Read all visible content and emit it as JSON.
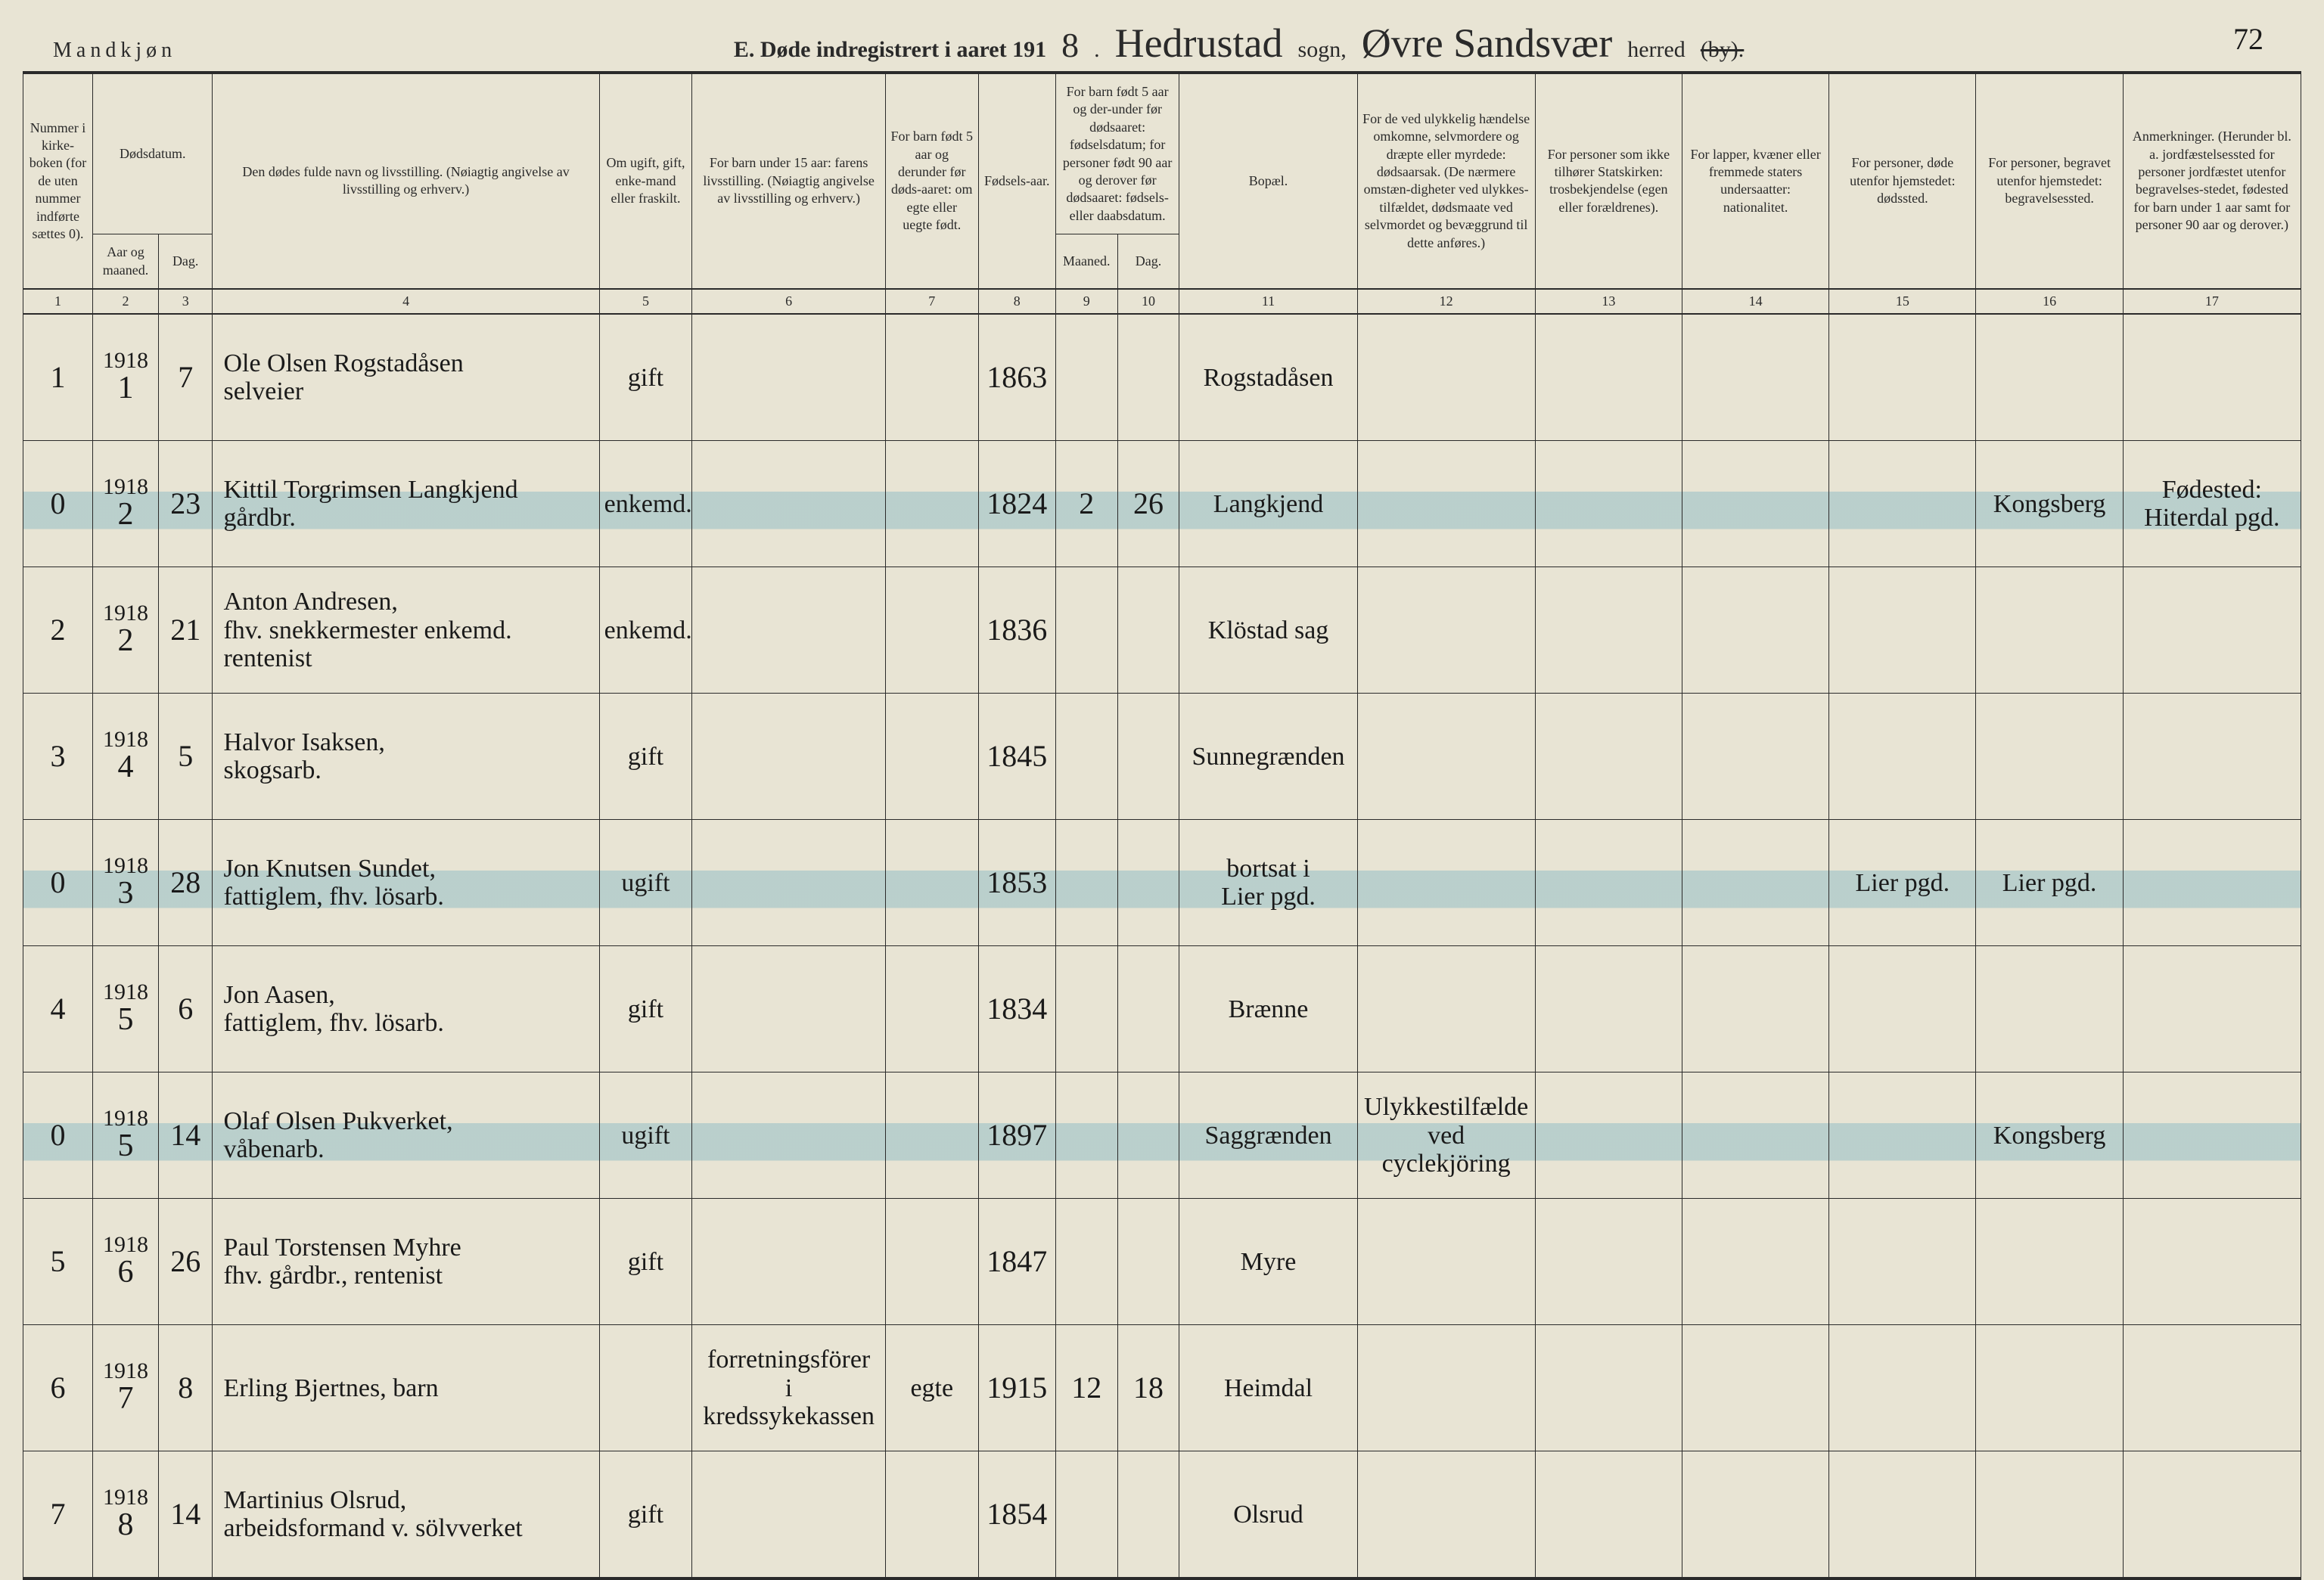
{
  "header": {
    "gender": "Mandkjøn",
    "title_prefix": "E.  Døde indregistrert i aaret 191",
    "year_suffix": "8",
    "sogn_label": "sogn,",
    "sogn_value": "Hedrustad",
    "herred_label": "herred",
    "herred_value": "Øvre Sandsvær",
    "strike_by": "(by).",
    "page_number": "72"
  },
  "columns": {
    "c1": "Nummer i kirke-boken (for de uten nummer indførte sættes 0).",
    "c2a": "Dødsdatum.",
    "c2b": "Aar og maaned.",
    "c3": "Dag.",
    "c4": "Den dødes fulde navn og livsstilling.\n(Nøiagtig angivelse av livsstilling og erhverv.)",
    "c5": "Om ugift, gift, enke-mand eller fraskilt.",
    "c6": "For barn under 15 aar:\nfarens livsstilling.\n(Nøiagtig angivelse av livsstilling og erhverv.)",
    "c7": "For barn født 5 aar og derunder før døds-aaret: om egte eller uegte født.",
    "c8": "Fødsels-aar.",
    "c9a": "For barn født 5 aar og der-under før dødsaaret: fødselsdatum; for personer født 90 aar og derover før dødsaaret: fødsels- eller daabsdatum.",
    "c9b": "Maaned.",
    "c10": "Dag.",
    "c11": "Bopæl.",
    "c12": "For de ved ulykkelig hændelse omkomne, selvmordere og dræpte eller myrdede: dødsaarsak.\n(De nærmere omstæn-digheter ved ulykkes-tilfældet, dødsmaate ved selvmordet og bevæggrund til dette anføres.)",
    "c13": "For personer som ikke tilhører Statskirken:\ntrosbekjendelse\n(egen eller forældrenes).",
    "c14": "For lapper, kvæner eller fremmede staters undersaatter:\nnationalitet.",
    "c15": "For personer, døde utenfor hjemstedet:\ndødssted.",
    "c16": "For personer, begravet utenfor hjemstedet:\nbegravelsessted.",
    "c17": "Anmerkninger.\n(Herunder bl. a. jordfæstelsessted for personer jordfæstet utenfor begravelses-stedet, fødested for barn under 1 aar samt for personer 90 aar og derover.)"
  },
  "colnums": [
    "1",
    "2",
    "3",
    "4",
    "5",
    "6",
    "7",
    "8",
    "9",
    "10",
    "11",
    "12",
    "13",
    "14",
    "15",
    "16",
    "17"
  ],
  "rows": [
    {
      "num": "1",
      "year": "1918",
      "month": "1",
      "day": "7",
      "name": "Ole Olsen Rogstadåsen\nselveier",
      "status": "gift",
      "father": "",
      "egte": "",
      "birth": "1863",
      "bm": "",
      "bd": "",
      "place": "Rogstadåsen",
      "cause": "",
      "rel": "",
      "nat": "",
      "deathplace": "",
      "burial": "",
      "notes": "",
      "hl": false
    },
    {
      "num": "0",
      "year": "1918",
      "month": "2",
      "day": "23",
      "name": "Kittil Torgrimsen Langkjend\ngårdbr.",
      "status": "enkemd.",
      "father": "",
      "egte": "",
      "birth": "1824",
      "bm": "2",
      "bd": "26",
      "place": "Langkjend",
      "cause": "",
      "rel": "",
      "nat": "",
      "deathplace": "",
      "burial": "Kongsberg",
      "notes": "Fødested:\nHiterdal pgd.",
      "hl": true
    },
    {
      "num": "2",
      "year": "1918",
      "month": "2",
      "day": "21",
      "name": "Anton Andresen,\nfhv. snekkermester enkemd.\nrentenist",
      "status": "enkemd.",
      "father": "",
      "egte": "",
      "birth": "1836",
      "bm": "",
      "bd": "",
      "place": "Klöstad sag",
      "cause": "",
      "rel": "",
      "nat": "",
      "deathplace": "",
      "burial": "",
      "notes": "",
      "hl": false
    },
    {
      "num": "3",
      "year": "1918",
      "month": "4",
      "day": "5",
      "name": "Halvor Isaksen,\nskogsarb.",
      "status": "gift",
      "father": "",
      "egte": "",
      "birth": "1845",
      "bm": "",
      "bd": "",
      "place": "Sunnegrænden",
      "cause": "",
      "rel": "",
      "nat": "",
      "deathplace": "",
      "burial": "",
      "notes": "",
      "hl": false
    },
    {
      "num": "0",
      "year": "1918",
      "month": "3",
      "day": "28",
      "name": "Jon Knutsen Sundet,\nfattiglem, fhv. lösarb.",
      "status": "ugift",
      "father": "",
      "egte": "",
      "birth": "1853",
      "bm": "",
      "bd": "",
      "place": "bortsat i\nLier pgd.",
      "cause": "",
      "rel": "",
      "nat": "",
      "deathplace": "Lier pgd.",
      "burial": "Lier pgd.",
      "notes": "",
      "hl": true
    },
    {
      "num": "4",
      "year": "1918",
      "month": "5",
      "day": "6",
      "name": "Jon Aasen,\nfattiglem, fhv. lösarb.",
      "status": "gift",
      "father": "",
      "egte": "",
      "birth": "1834",
      "bm": "",
      "bd": "",
      "place": "Brænne",
      "cause": "",
      "rel": "",
      "nat": "",
      "deathplace": "",
      "burial": "",
      "notes": "",
      "hl": false
    },
    {
      "num": "0",
      "year": "1918",
      "month": "5",
      "day": "14",
      "name": "Olaf Olsen Pukverket,\nvåbenarb.",
      "status": "ugift",
      "father": "",
      "egte": "",
      "birth": "1897",
      "bm": "",
      "bd": "",
      "place": "Saggrænden",
      "cause": "Ulykkestilfælde\nved cyclekjöring",
      "rel": "",
      "nat": "",
      "deathplace": "",
      "burial": "Kongsberg",
      "notes": "",
      "hl": true
    },
    {
      "num": "5",
      "year": "1918",
      "month": "6",
      "day": "26",
      "name": "Paul Torstensen Myhre\nfhv. gårdbr., rentenist",
      "status": "gift",
      "father": "",
      "egte": "",
      "birth": "1847",
      "bm": "",
      "bd": "",
      "place": "Myre",
      "cause": "",
      "rel": "",
      "nat": "",
      "deathplace": "",
      "burial": "",
      "notes": "",
      "hl": false
    },
    {
      "num": "6",
      "year": "1918",
      "month": "7",
      "day": "8",
      "name": "Erling Bjertnes, barn",
      "status": "",
      "father": "forretningsförer\ni kredssykekassen",
      "egte": "egte",
      "birth": "1915",
      "bm": "12",
      "bd": "18",
      "place": "Heimdal",
      "cause": "",
      "rel": "",
      "nat": "",
      "deathplace": "",
      "burial": "",
      "notes": "",
      "hl": false
    },
    {
      "num": "7",
      "year": "1918",
      "month": "8",
      "day": "14",
      "name": "Martinius Olsrud,\narbeidsformand v. sölvverket",
      "status": "gift",
      "father": "",
      "egte": "",
      "birth": "1854",
      "bm": "",
      "bd": "",
      "place": "Olsrud",
      "cause": "",
      "rel": "",
      "nat": "",
      "deathplace": "",
      "burial": "",
      "notes": "",
      "hl": false
    }
  ]
}
